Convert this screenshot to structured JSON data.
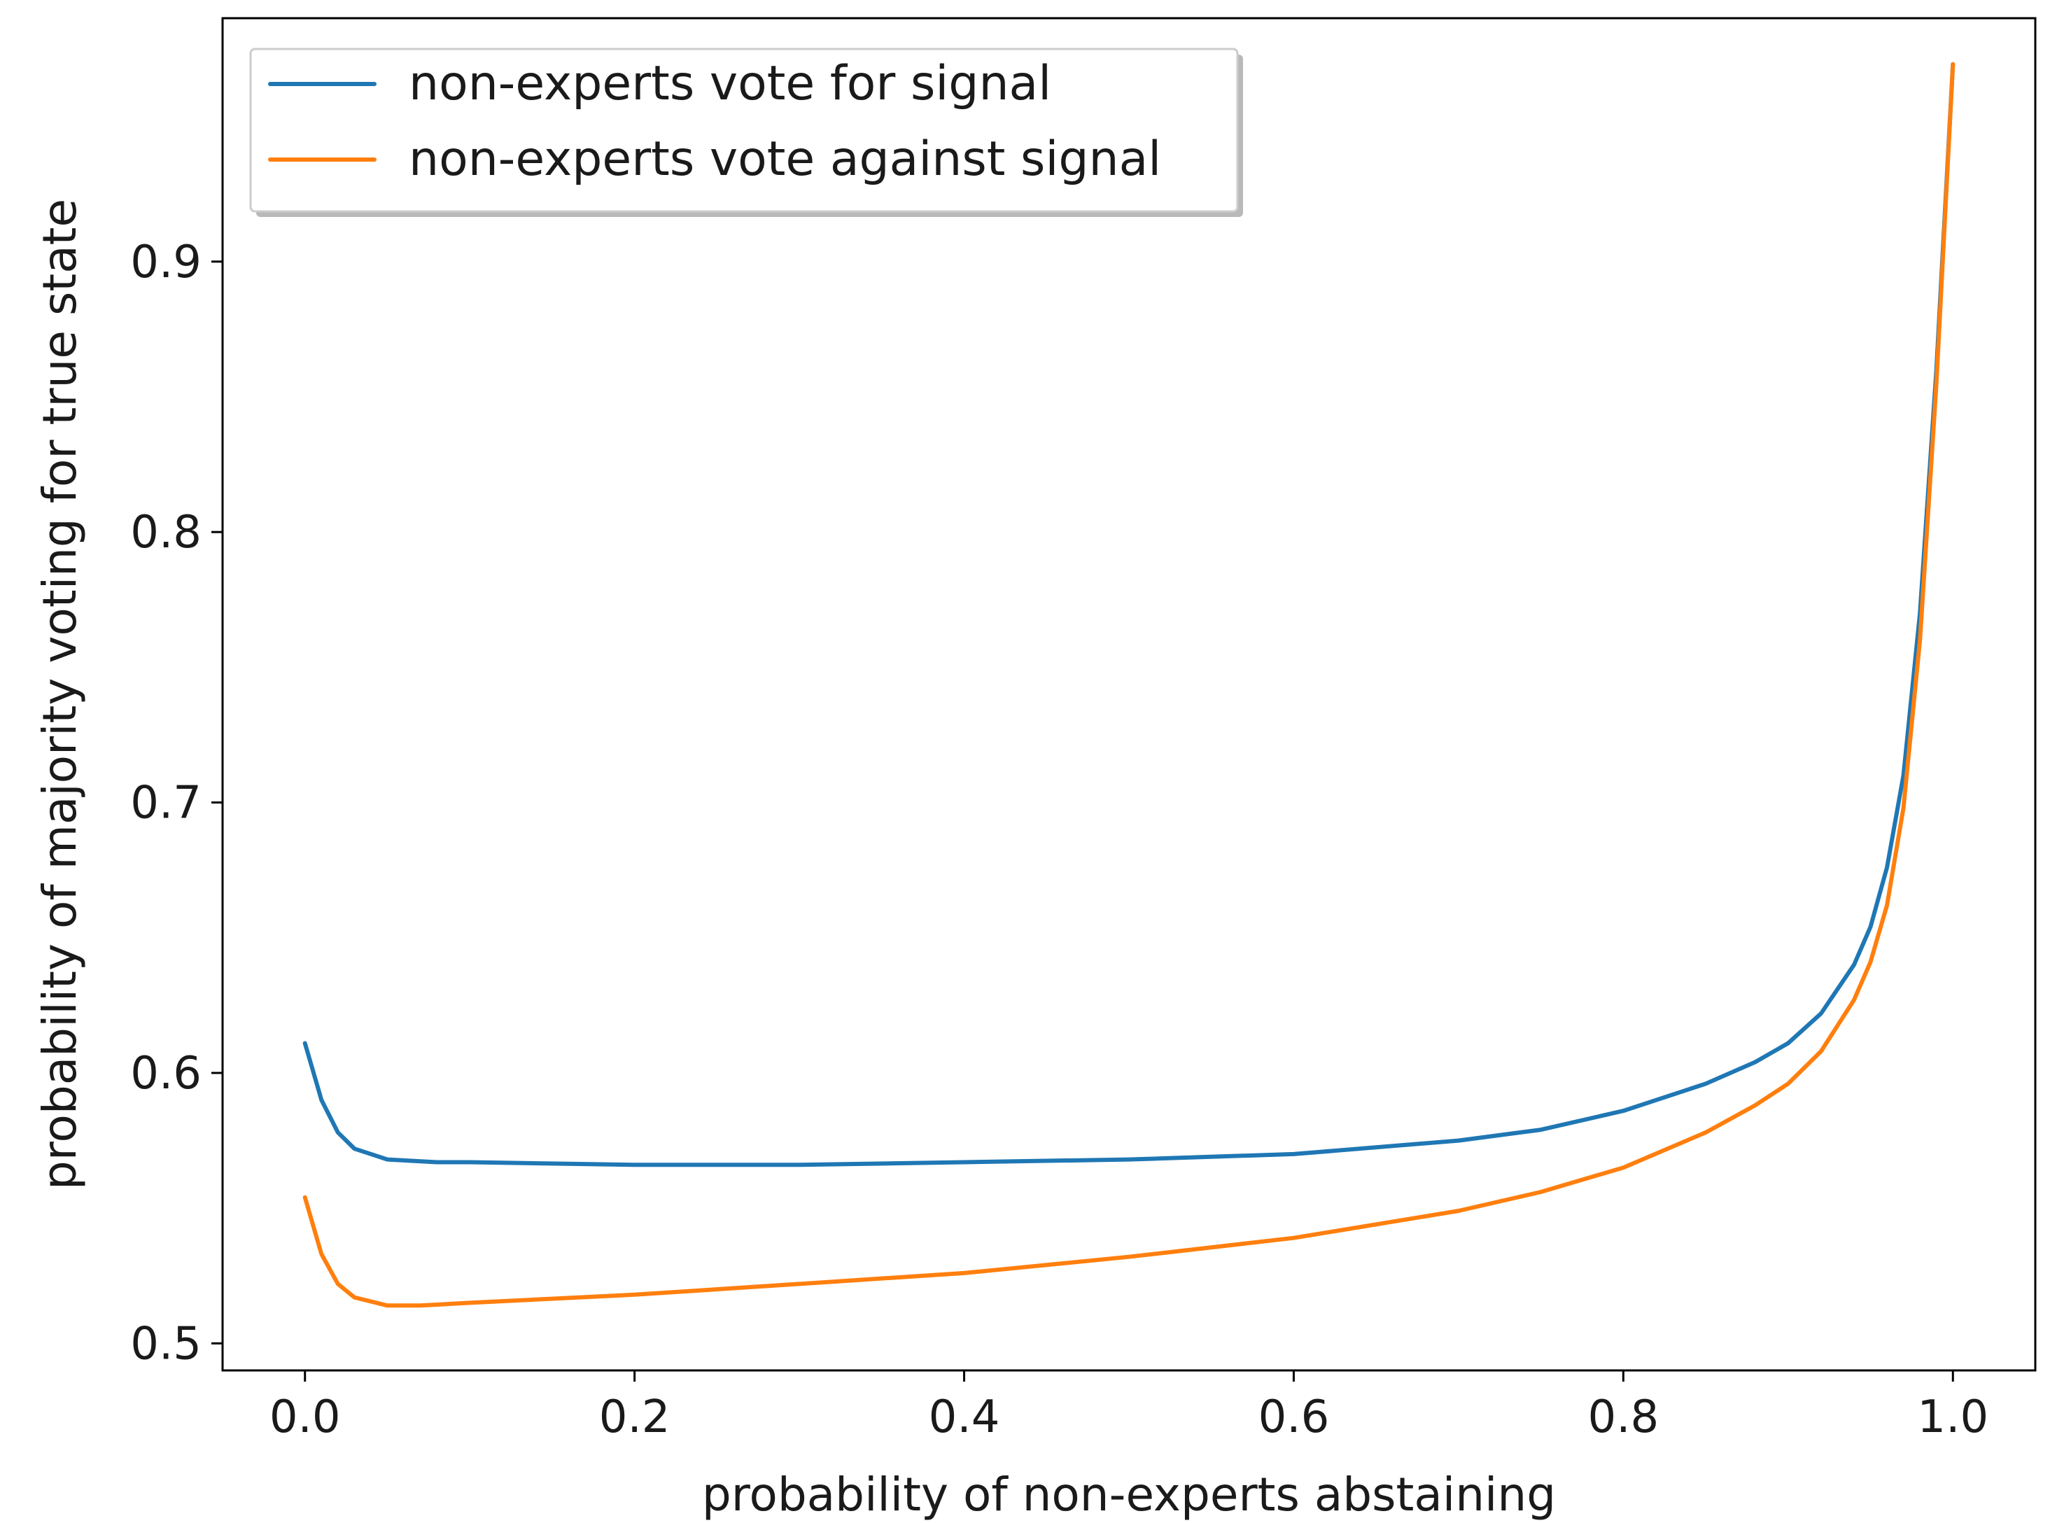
{
  "chart_data": {
    "type": "line",
    "title": "",
    "xlabel": "probability of non-experts abstaining",
    "ylabel": "probability of majority voting for true state",
    "xlim": [
      -0.05,
      1.05
    ],
    "ylim": [
      0.49,
      0.99
    ],
    "xticks": [
      0.0,
      0.2,
      0.4,
      0.6,
      0.8,
      1.0
    ],
    "xtick_labels": [
      "0.0",
      "0.2",
      "0.4",
      "0.6",
      "0.8",
      "1.0"
    ],
    "yticks": [
      0.5,
      0.6,
      0.7,
      0.8,
      0.9
    ],
    "ytick_labels": [
      "0.5",
      "0.6",
      "0.7",
      "0.8",
      "0.9"
    ],
    "grid": false,
    "legend_position": "top-left",
    "series": [
      {
        "name": "non-experts vote for signal",
        "color": "#1f77b4",
        "x": [
          0.0,
          0.01,
          0.02,
          0.03,
          0.05,
          0.08,
          0.1,
          0.2,
          0.3,
          0.4,
          0.5,
          0.6,
          0.7,
          0.75,
          0.8,
          0.85,
          0.88,
          0.9,
          0.92,
          0.94,
          0.95,
          0.96,
          0.97,
          0.98,
          0.99,
          1.0
        ],
        "y": [
          0.611,
          0.59,
          0.578,
          0.572,
          0.568,
          0.567,
          0.567,
          0.566,
          0.566,
          0.567,
          0.568,
          0.57,
          0.575,
          0.579,
          0.586,
          0.596,
          0.604,
          0.611,
          0.622,
          0.64,
          0.654,
          0.676,
          0.71,
          0.77,
          0.86,
          0.973
        ]
      },
      {
        "name": "non-experts vote against signal",
        "color": "#ff7f0e",
        "x": [
          0.0,
          0.01,
          0.02,
          0.03,
          0.05,
          0.07,
          0.1,
          0.2,
          0.3,
          0.4,
          0.5,
          0.6,
          0.7,
          0.75,
          0.8,
          0.85,
          0.88,
          0.9,
          0.92,
          0.94,
          0.95,
          0.96,
          0.97,
          0.98,
          0.99,
          1.0
        ],
        "y": [
          0.554,
          0.533,
          0.522,
          0.517,
          0.514,
          0.514,
          0.515,
          0.518,
          0.522,
          0.526,
          0.532,
          0.539,
          0.549,
          0.556,
          0.565,
          0.578,
          0.588,
          0.596,
          0.608,
          0.627,
          0.641,
          0.662,
          0.698,
          0.76,
          0.855,
          0.973
        ]
      }
    ]
  }
}
